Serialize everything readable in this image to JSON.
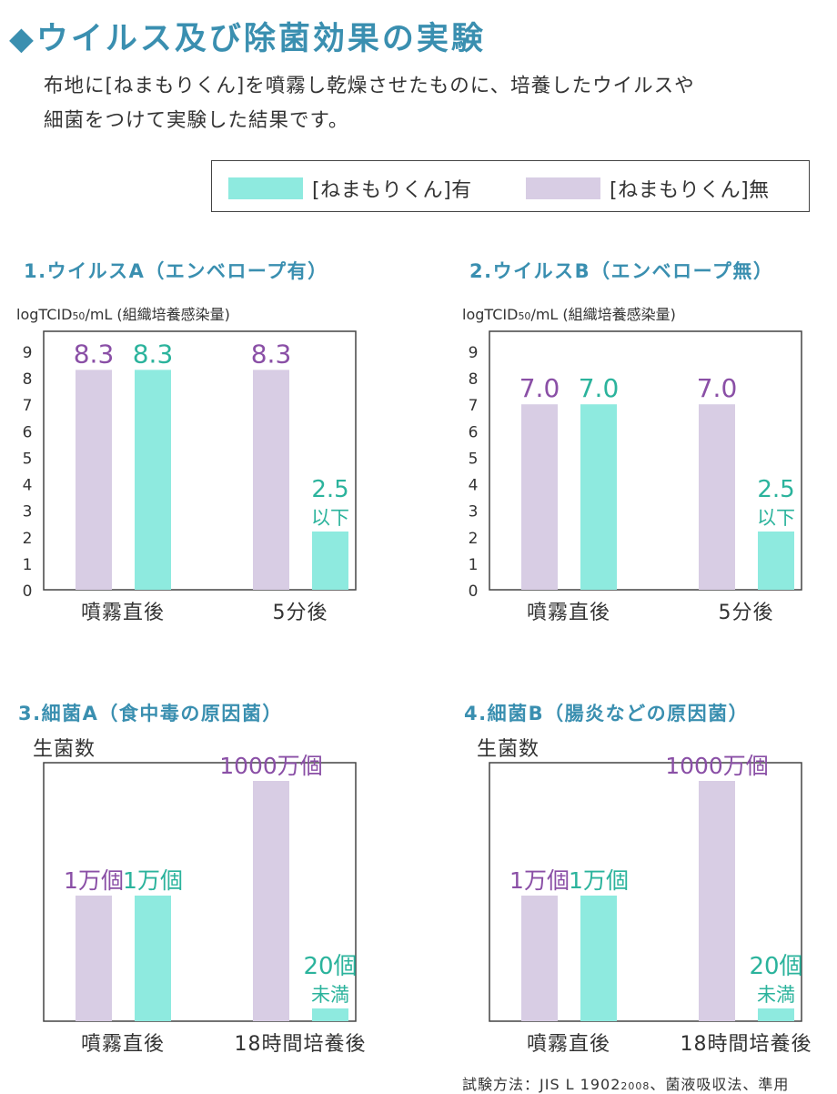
{
  "title": "◆ウイルス及び除菌効果の実験",
  "intro": {
    "line1": "布地に[ねまもりくん]を噴霧し乾燥させたものに、培養したウイルスや",
    "line2": "細菌をつけて実験した結果です。"
  },
  "legend": {
    "with": {
      "label": "[ねまもりくん]有",
      "color": "#8eeadf"
    },
    "without": {
      "label": "[ねまもりくん]無",
      "color": "#d8cde4"
    }
  },
  "colors": {
    "with_bar": "#8eeadf",
    "without_bar": "#d8cde4",
    "with_text": "#2bb39c",
    "without_text": "#8a4fa6",
    "title": "#3a8fb0"
  },
  "panels": [
    {
      "title": "1.ウイルスA（エンベロープ有）",
      "unit": "logTCID",
      "unit_sub": "50",
      "unit_rest": "/mL (組織培養感染量)"
    },
    {
      "title": "2.ウイルスB（エンベロープ無）",
      "unit": "logTCID",
      "unit_sub": "50",
      "unit_rest": "/mL (組織培養感染量)"
    },
    {
      "title": "3.細菌A（食中毒の原因菌）",
      "unit": "生菌数"
    },
    {
      "title": "4.細菌B（腸炎などの原因菌）",
      "unit": "生菌数"
    }
  ],
  "chart_data": [
    {
      "type": "bar",
      "title": "1.ウイルスA（エンベロープ有）",
      "ylabel": "logTCID50/mL (組織培養感染量)",
      "ylim": [
        0,
        9
      ],
      "yticks": [
        "0",
        "1",
        "2",
        "3",
        "4",
        "5",
        "6",
        "7",
        "8",
        "9"
      ],
      "categories": [
        "噴霧直後",
        "5分後"
      ],
      "series": [
        {
          "name": "[ねまもりくん]無",
          "values": [
            8.3,
            8.3
          ],
          "labels": [
            "8.3",
            "8.3"
          ],
          "sublabels": [
            "",
            ""
          ]
        },
        {
          "name": "[ねまもりくん]有",
          "values": [
            8.3,
            2.2
          ],
          "labels": [
            "8.3",
            "2.5"
          ],
          "sublabels": [
            "",
            "以下"
          ]
        }
      ],
      "legend": "top-right",
      "grid": false
    },
    {
      "type": "bar",
      "title": "2.ウイルスB（エンベロープ無）",
      "ylabel": "logTCID50/mL (組織培養感染量)",
      "ylim": [
        0,
        9
      ],
      "yticks": [
        "0",
        "1",
        "2",
        "3",
        "4",
        "5",
        "6",
        "7",
        "8",
        "9"
      ],
      "categories": [
        "噴霧直後",
        "5分後"
      ],
      "series": [
        {
          "name": "[ねまもりくん]無",
          "values": [
            7.0,
            7.0
          ],
          "labels": [
            "7.0",
            "7.0"
          ],
          "sublabels": [
            "",
            ""
          ]
        },
        {
          "name": "[ねまもりくん]有",
          "values": [
            7.0,
            2.2
          ],
          "labels": [
            "7.0",
            "2.5"
          ],
          "sublabels": [
            "",
            "以下"
          ]
        }
      ],
      "legend": "top-right",
      "grid": false
    },
    {
      "type": "bar",
      "title": "3.細菌A（食中毒の原因菌）",
      "ylabel": "生菌数",
      "categories": [
        "噴霧直後",
        "18時間培養後"
      ],
      "series": [
        {
          "name": "[ねまもりくん]無",
          "values": [
            10000,
            10000000
          ],
          "labels": [
            "1万個",
            "1000万個"
          ],
          "sublabels": [
            "",
            ""
          ]
        },
        {
          "name": "[ねまもりくん]有",
          "values": [
            10000,
            20
          ],
          "labels": [
            "1万個",
            "20個"
          ],
          "sublabels": [
            "",
            "未満"
          ]
        }
      ],
      "legend": "top-right",
      "grid": false
    },
    {
      "type": "bar",
      "title": "4.細菌B（腸炎などの原因菌）",
      "ylabel": "生菌数",
      "categories": [
        "噴霧直後",
        "18時間培養後"
      ],
      "series": [
        {
          "name": "[ねまもりくん]無",
          "values": [
            10000,
            10000000
          ],
          "labels": [
            "1万個",
            "1000万個"
          ],
          "sublabels": [
            "",
            ""
          ]
        },
        {
          "name": "[ねまもりくん]有",
          "values": [
            10000,
            20
          ],
          "labels": [
            "1万個",
            "20個"
          ],
          "sublabels": [
            "",
            "未満"
          ]
        }
      ],
      "legend": "top-right",
      "grid": false
    }
  ],
  "footer": {
    "method_prefix": "試験方法：JIS L 1902",
    "method_year": "2008",
    "method_suffix": "、菌液吸収法、準用"
  }
}
